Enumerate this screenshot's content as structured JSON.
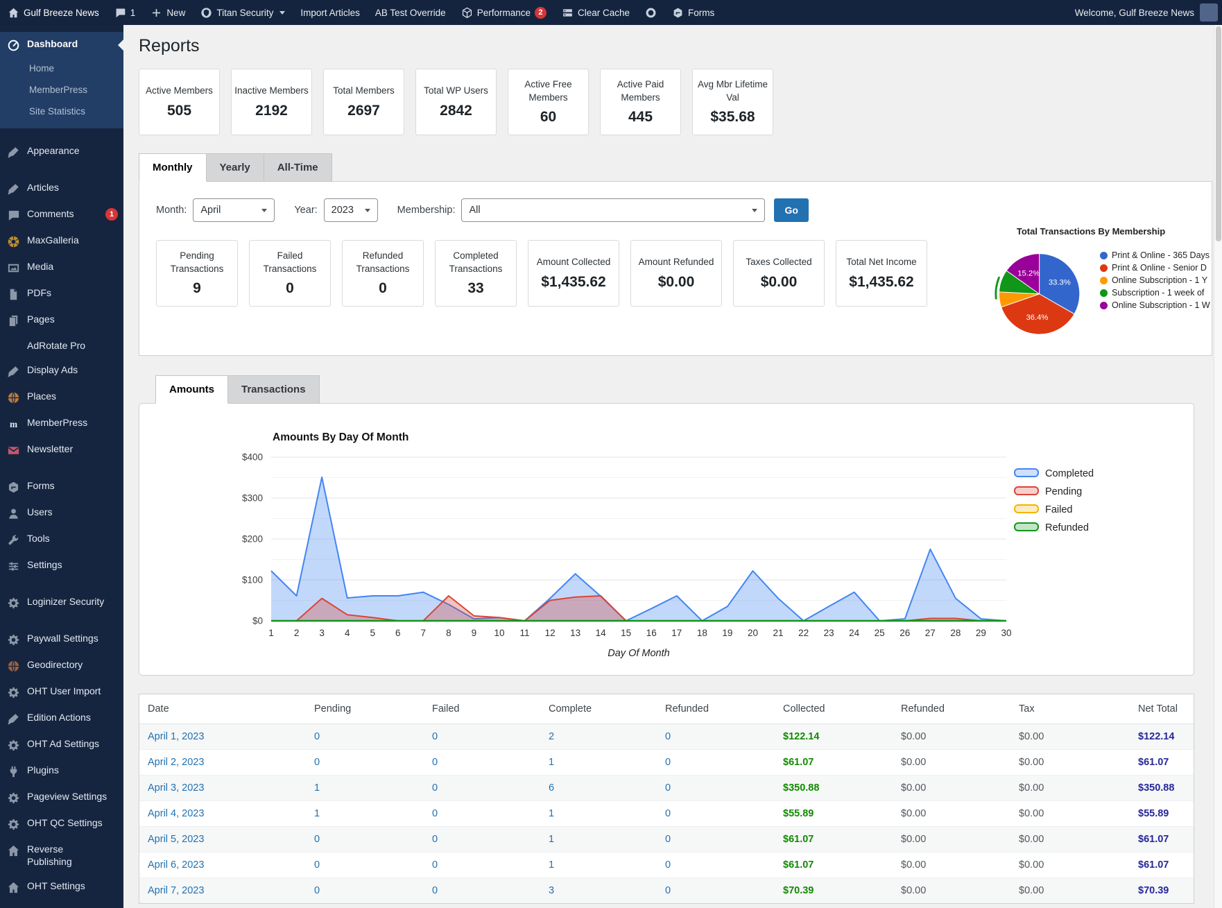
{
  "admin_bar": {
    "items": [
      {
        "icon": "home",
        "label": "Gulf Breeze News"
      },
      {
        "icon": "comment",
        "label": "1"
      },
      {
        "icon": "plus",
        "label": "New"
      },
      {
        "icon": "shield",
        "label": "Titan Security",
        "caret": true
      },
      {
        "label": "Import Articles"
      },
      {
        "label": "AB Test Override"
      },
      {
        "icon": "dice",
        "label": "Performance",
        "badge": "2"
      },
      {
        "icon": "server",
        "label": "Clear Cache"
      },
      {
        "icon": "disc",
        "label": ""
      },
      {
        "icon": "hexform",
        "label": "Forms"
      }
    ],
    "welcome": "Welcome, Gulf Breeze News"
  },
  "sidebar": {
    "items": [
      {
        "icon": "gauge",
        "label": "Dashboard",
        "active": true,
        "hl": true
      },
      {
        "label": "Home",
        "sub": true,
        "hl": true
      },
      {
        "label": "MemberPress",
        "sub": true,
        "hl": true
      },
      {
        "label": "Site Statistics",
        "sub": true,
        "hl": true
      },
      {
        "icon": "brush",
        "label": "Appearance",
        "gap": true
      },
      {
        "icon": "brush",
        "label": "Articles",
        "gap": true
      },
      {
        "icon": "comment",
        "label": "Comments",
        "badge": "1"
      },
      {
        "icon": "aperture",
        "label": "MaxGalleria",
        "color": "#bd8d2e"
      },
      {
        "icon": "media",
        "label": "Media"
      },
      {
        "icon": "doc",
        "label": "PDFs"
      },
      {
        "icon": "pages",
        "label": "Pages"
      },
      {
        "label": "AdRotate Pro",
        "noicon": true
      },
      {
        "icon": "brush",
        "label": "Display Ads"
      },
      {
        "icon": "globe",
        "label": "Places",
        "color": "#c07a3c"
      },
      {
        "icon": "mp",
        "label": "MemberPress"
      },
      {
        "icon": "mail",
        "label": "Newsletter",
        "color": "#c4566d"
      },
      {
        "icon": "hexform",
        "label": "Forms",
        "gap": true
      },
      {
        "icon": "user",
        "label": "Users"
      },
      {
        "icon": "wrench",
        "label": "Tools"
      },
      {
        "icon": "sliders",
        "label": "Settings"
      },
      {
        "icon": "gear",
        "label": "Loginizer Security",
        "gap": true
      },
      {
        "icon": "gear",
        "label": "Paywall Settings",
        "gap": true
      },
      {
        "icon": "globe",
        "label": "Geodirectory",
        "color": "#a0613c"
      },
      {
        "icon": "gear",
        "label": "OHT User Import"
      },
      {
        "icon": "brush",
        "label": "Edition Actions"
      },
      {
        "icon": "gear",
        "label": "OHT Ad Settings"
      },
      {
        "icon": "plug",
        "label": "Plugins"
      },
      {
        "icon": "gear",
        "label": "Pageview Settings"
      },
      {
        "icon": "gear",
        "label": "OHT QC Settings"
      },
      {
        "icon": "home",
        "label": "Reverse Publishing"
      },
      {
        "icon": "home",
        "label": "OHT Settings"
      }
    ]
  },
  "page": {
    "title": "Reports"
  },
  "summary_cards": [
    {
      "label": "Active Members",
      "value": "505"
    },
    {
      "label": "Inactive Members",
      "value": "2192"
    },
    {
      "label": "Total Members",
      "value": "2697"
    },
    {
      "label": "Total WP Users",
      "value": "2842"
    },
    {
      "label": "Active Free Members",
      "value": "60"
    },
    {
      "label": "Active Paid Members",
      "value": "445"
    },
    {
      "label": "Avg Mbr Lifetime Val",
      "value": "$35.68"
    }
  ],
  "period_tabs": [
    {
      "label": "Monthly",
      "active": true
    },
    {
      "label": "Yearly"
    },
    {
      "label": "All-Time"
    }
  ],
  "filters": {
    "month_label": "Month:",
    "month_value": "April",
    "year_label": "Year:",
    "year_value": "2023",
    "membership_label": "Membership:",
    "membership_value": "All",
    "go_label": "Go"
  },
  "transaction_cards": [
    {
      "label": "Pending Transactions",
      "value": "9"
    },
    {
      "label": "Failed Transactions",
      "value": "0"
    },
    {
      "label": "Refunded Transactions",
      "value": "0"
    },
    {
      "label": "Completed Transactions",
      "value": "33"
    },
    {
      "label": "Amount Collected",
      "value": "$1,435.62"
    },
    {
      "label": "Amount Refunded",
      "value": "$0.00"
    },
    {
      "label": "Taxes Collected",
      "value": "$0.00"
    },
    {
      "label": "Total Net Income",
      "value": "$1,435.62"
    }
  ],
  "chart_tabs": [
    {
      "label": "Amounts",
      "active": true
    },
    {
      "label": "Transactions"
    }
  ],
  "chart_data": [
    {
      "type": "pie",
      "title": "Total Transactions By Membership",
      "labels": [
        "Print & Online - 365 Days",
        "Print & Online - Senior D",
        "Online Subscription - 1 Y",
        "Subscription - 1 week of",
        "Online Subscription - 1 W"
      ],
      "values": [
        33.3,
        36.4,
        6.1,
        9.0,
        15.2
      ],
      "colors": [
        "#3366cc",
        "#dc3912",
        "#ff9900",
        "#109618",
        "#990099"
      ],
      "slice_labels": [
        "33.3%",
        "36.4%",
        "",
        "",
        "15.2%"
      ],
      "detached_arc": {
        "from": 264,
        "to": 292,
        "color": "#109618"
      },
      "legend_position": "right"
    },
    {
      "type": "area",
      "title": "Amounts By Day Of Month",
      "xlabel": "Day Of Month",
      "x": [
        1,
        2,
        3,
        4,
        5,
        6,
        7,
        8,
        9,
        10,
        11,
        12,
        13,
        14,
        15,
        16,
        17,
        18,
        19,
        20,
        21,
        22,
        23,
        24,
        25,
        26,
        27,
        28,
        29,
        30
      ],
      "series": [
        {
          "name": "Completed",
          "color": "#4285f4",
          "values": [
            122,
            61,
            351,
            56,
            61,
            61,
            70,
            40,
            5,
            8,
            0,
            55,
            115,
            60,
            0,
            30,
            61,
            0,
            35,
            122,
            55,
            0,
            35,
            70,
            0,
            5,
            175,
            55,
            5,
            0
          ]
        },
        {
          "name": "Pending",
          "color": "#db4437",
          "values": [
            0,
            0,
            55,
            15,
            8,
            0,
            0,
            61,
            12,
            8,
            0,
            50,
            58,
            61,
            0,
            0,
            0,
            0,
            0,
            0,
            0,
            0,
            0,
            0,
            0,
            0,
            6,
            6,
            0,
            0
          ]
        },
        {
          "name": "Failed",
          "color": "#f4b400",
          "values": [
            0,
            0,
            0,
            0,
            0,
            0,
            0,
            0,
            0,
            0,
            0,
            0,
            0,
            0,
            0,
            0,
            0,
            0,
            0,
            0,
            0,
            0,
            0,
            0,
            0,
            0,
            0,
            0,
            0,
            0
          ]
        },
        {
          "name": "Refunded",
          "color": "#109618",
          "values": [
            0,
            0,
            0,
            0,
            0,
            0,
            0,
            0,
            0,
            0,
            0,
            0,
            0,
            0,
            0,
            0,
            0,
            0,
            0,
            0,
            0,
            0,
            0,
            0,
            0,
            0,
            0,
            0,
            0,
            0
          ]
        }
      ],
      "ylim": [
        0,
        400
      ],
      "yticks": [
        "$0",
        "$100",
        "$200",
        "$300",
        "$400"
      ],
      "grid": true,
      "legend_position": "right"
    }
  ],
  "table": {
    "headers": [
      "Date",
      "Pending",
      "Failed",
      "Complete",
      "Refunded",
      "Collected",
      "Refunded",
      "Tax",
      "Net Total"
    ],
    "rows": [
      [
        "April 1, 2023",
        "0",
        "0",
        "2",
        "0",
        "$122.14",
        "$0.00",
        "$0.00",
        "$122.14"
      ],
      [
        "April 2, 2023",
        "0",
        "0",
        "1",
        "0",
        "$61.07",
        "$0.00",
        "$0.00",
        "$61.07"
      ],
      [
        "April 3, 2023",
        "1",
        "0",
        "6",
        "0",
        "$350.88",
        "$0.00",
        "$0.00",
        "$350.88"
      ],
      [
        "April 4, 2023",
        "1",
        "0",
        "1",
        "0",
        "$55.89",
        "$0.00",
        "$0.00",
        "$55.89"
      ],
      [
        "April 5, 2023",
        "0",
        "0",
        "1",
        "0",
        "$61.07",
        "$0.00",
        "$0.00",
        "$61.07"
      ],
      [
        "April 6, 2023",
        "0",
        "0",
        "1",
        "0",
        "$61.07",
        "$0.00",
        "$0.00",
        "$61.07"
      ],
      [
        "April 7, 2023",
        "0",
        "0",
        "3",
        "0",
        "$70.39",
        "$0.00",
        "$0.00",
        "$70.39"
      ]
    ]
  }
}
